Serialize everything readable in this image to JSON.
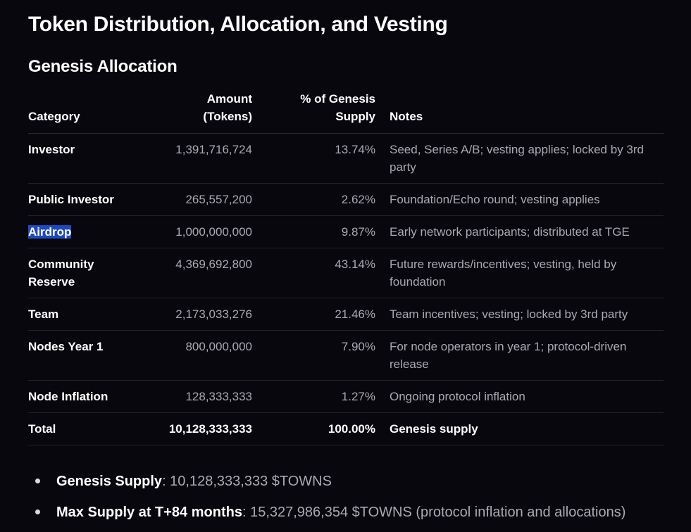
{
  "title": "Token Distribution, Allocation, and Vesting",
  "section_title": "Genesis Allocation",
  "table": {
    "headers": {
      "category": "Category",
      "amount_line1": "Amount",
      "amount_line2": "(Tokens)",
      "pct_line1": "% of Genesis",
      "pct_line2": "Supply",
      "notes": "Notes"
    },
    "rows": [
      {
        "category": "Investor",
        "amount": "1,391,716,724",
        "pct": "13.74%",
        "notes": "Seed, Series A/B; vesting applies; locked by 3rd party"
      },
      {
        "category": "Public Investor",
        "amount": "265,557,200",
        "pct": "2.62%",
        "notes": "Foundation/Echo round; vesting applies"
      },
      {
        "category": "Airdrop",
        "amount": "1,000,000,000",
        "pct": "9.87%",
        "notes": "Early network participants; distributed at TGE"
      },
      {
        "category": "Community Reserve",
        "amount": "4,369,692,800",
        "pct": "43.14%",
        "notes": "Future rewards/incentives; vesting, held by foundation"
      },
      {
        "category": "Team",
        "amount": "2,173,033,276",
        "pct": "21.46%",
        "notes": "Team incentives; vesting; locked by 3rd party"
      },
      {
        "category": "Nodes Year 1",
        "amount": "800,000,000",
        "pct": "7.90%",
        "notes": "For node operators in year 1; protocol-driven release"
      },
      {
        "category": "Node Inflation",
        "amount": "128,333,333",
        "pct": "1.27%",
        "notes": "Ongoing protocol inflation"
      }
    ],
    "total": {
      "category": "Total",
      "amount": "10,128,333,333",
      "pct": "100.00%",
      "notes": "Genesis supply"
    }
  },
  "bullets": [
    {
      "label": "Genesis Supply",
      "text": ": 10,128,333,333 $TOWNS"
    },
    {
      "label": "Max Supply at T+84 months",
      "text": ": 15,327,986,354 $TOWNS (protocol inflation and allocations)"
    }
  ],
  "colors": {
    "background": "#07070d",
    "text_primary": "#ffffff",
    "text_secondary": "#a9a9b2",
    "selection_highlight": "#1d49c4"
  }
}
